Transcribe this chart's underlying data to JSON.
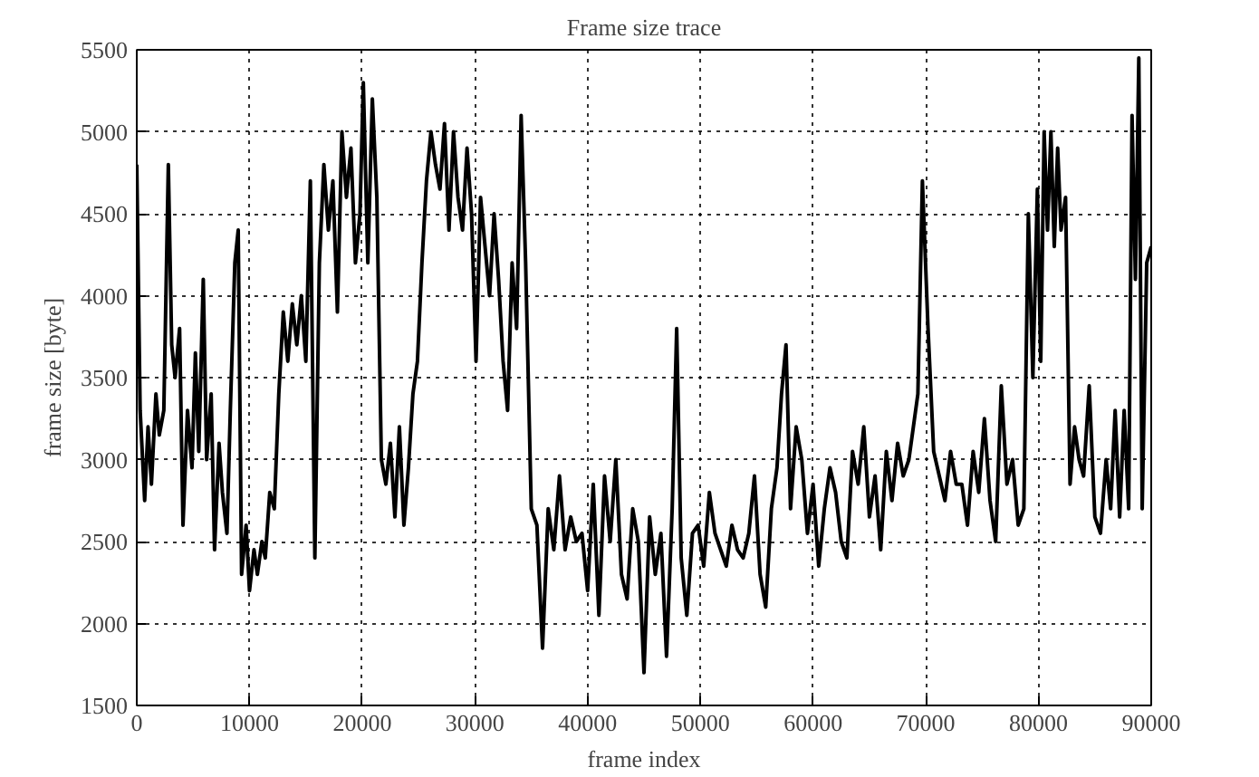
{
  "chart_data": {
    "type": "line",
    "title": "Frame size trace",
    "xlabel": "frame index",
    "ylabel": "frame size [byte]",
    "xlim": [
      0,
      90000
    ],
    "ylim": [
      1500,
      5500
    ],
    "xticks": [
      0,
      10000,
      20000,
      30000,
      40000,
      50000,
      60000,
      70000,
      80000,
      90000
    ],
    "yticks": [
      1500,
      2000,
      2500,
      3000,
      3500,
      4000,
      4500,
      5000,
      5500
    ],
    "grid": true,
    "marker": "none",
    "line_style": "solid",
    "series": [
      {
        "color": "#000000",
        "x": [
          0,
          300,
          700,
          1000,
          1300,
          1700,
          2000,
          2400,
          2800,
          3100,
          3400,
          3800,
          4100,
          4500,
          4900,
          5200,
          5500,
          5900,
          6200,
          6600,
          6900,
          7300,
          7600,
          8000,
          8300,
          8700,
          9000,
          9300,
          9700,
          10000,
          10400,
          10700,
          11100,
          11400,
          11800,
          12200,
          12600,
          13000,
          13400,
          13800,
          14200,
          14600,
          15000,
          15400,
          15800,
          16200,
          16600,
          17000,
          17400,
          17800,
          18200,
          18600,
          19000,
          19400,
          19800,
          20100,
          20500,
          20900,
          21300,
          21700,
          22100,
          22500,
          22900,
          23300,
          23700,
          24100,
          24500,
          24900,
          25300,
          25700,
          26100,
          26500,
          26900,
          27300,
          27700,
          28100,
          28500,
          28900,
          29300,
          29700,
          30100,
          30500,
          30900,
          31300,
          31700,
          32100,
          32500,
          32900,
          33300,
          33700,
          34100,
          34500,
          35000,
          35500,
          36000,
          36500,
          37000,
          37500,
          38000,
          38500,
          39000,
          39500,
          40000,
          40500,
          41000,
          41500,
          42000,
          42500,
          43000,
          43500,
          44000,
          44500,
          45000,
          45500,
          46000,
          46500,
          47000,
          47500,
          47900,
          48300,
          48800,
          49300,
          49800,
          50300,
          50800,
          51300,
          51800,
          52300,
          52800,
          53300,
          53800,
          54300,
          54800,
          55300,
          55800,
          56300,
          56800,
          57200,
          57600,
          58000,
          58500,
          59000,
          59500,
          60000,
          60500,
          61000,
          61500,
          62000,
          62500,
          63000,
          63500,
          64000,
          64500,
          65000,
          65500,
          66000,
          66500,
          67000,
          67500,
          68000,
          68500,
          68900,
          69300,
          69700,
          70200,
          70700,
          71200,
          71700,
          72200,
          72700,
          73200,
          73700,
          74200,
          74700,
          75200,
          75700,
          76200,
          76700,
          77200,
          77700,
          78200,
          78700,
          79100,
          79500,
          79900,
          80200,
          80500,
          80800,
          81100,
          81400,
          81700,
          82000,
          82400,
          82800,
          83200,
          83600,
          84000,
          84500,
          85000,
          85500,
          86000,
          86400,
          86800,
          87200,
          87600,
          88000,
          88300,
          88600,
          88900,
          89200,
          89600,
          90000
        ],
        "values": [
          4800,
          3300,
          2750,
          3200,
          2850,
          3400,
          3150,
          3300,
          4800,
          3700,
          3500,
          3800,
          2600,
          3300,
          2950,
          3650,
          3050,
          4100,
          3000,
          3400,
          2450,
          3100,
          2800,
          2550,
          3300,
          4200,
          4400,
          2300,
          2600,
          2200,
          2450,
          2300,
          2500,
          2400,
          2800,
          2700,
          3400,
          3900,
          3600,
          3950,
          3700,
          4000,
          3600,
          4700,
          2400,
          4200,
          4800,
          4400,
          4700,
          3900,
          5000,
          4600,
          4900,
          4200,
          4500,
          5300,
          4200,
          5200,
          4600,
          3000,
          2850,
          3100,
          2650,
          3200,
          2600,
          2950,
          3400,
          3600,
          4200,
          4700,
          5000,
          4800,
          4650,
          5050,
          4400,
          5000,
          4600,
          4400,
          4900,
          4500,
          3600,
          4600,
          4300,
          4000,
          4500,
          4100,
          3600,
          3300,
          4200,
          3800,
          5100,
          4200,
          2700,
          2600,
          1850,
          2700,
          2450,
          2900,
          2450,
          2650,
          2500,
          2550,
          2200,
          2850,
          2050,
          2900,
          2500,
          3000,
          2300,
          2150,
          2700,
          2500,
          1700,
          2650,
          2300,
          2550,
          1800,
          2700,
          3800,
          2400,
          2050,
          2550,
          2600,
          2350,
          2800,
          2550,
          2450,
          2350,
          2600,
          2450,
          2400,
          2550,
          2900,
          2300,
          2100,
          2700,
          2950,
          3400,
          3700,
          2700,
          3200,
          3000,
          2550,
          2850,
          2350,
          2700,
          2950,
          2800,
          2500,
          2400,
          3050,
          2850,
          3200,
          2650,
          2900,
          2450,
          3050,
          2750,
          3100,
          2900,
          3000,
          3200,
          3400,
          4700,
          3800,
          3050,
          2900,
          2750,
          3050,
          2850,
          2850,
          2600,
          3050,
          2800,
          3250,
          2750,
          2500,
          3450,
          2850,
          3000,
          2600,
          2700,
          4500,
          3500,
          4650,
          3600,
          5000,
          4400,
          5000,
          4300,
          4900,
          4400,
          4600,
          2850,
          3200,
          3000,
          2900,
          3450,
          2650,
          2550,
          3000,
          2700,
          3300,
          2650,
          3300,
          2700,
          5100,
          4100,
          5450,
          2700,
          4200,
          4300
        ]
      }
    ]
  }
}
